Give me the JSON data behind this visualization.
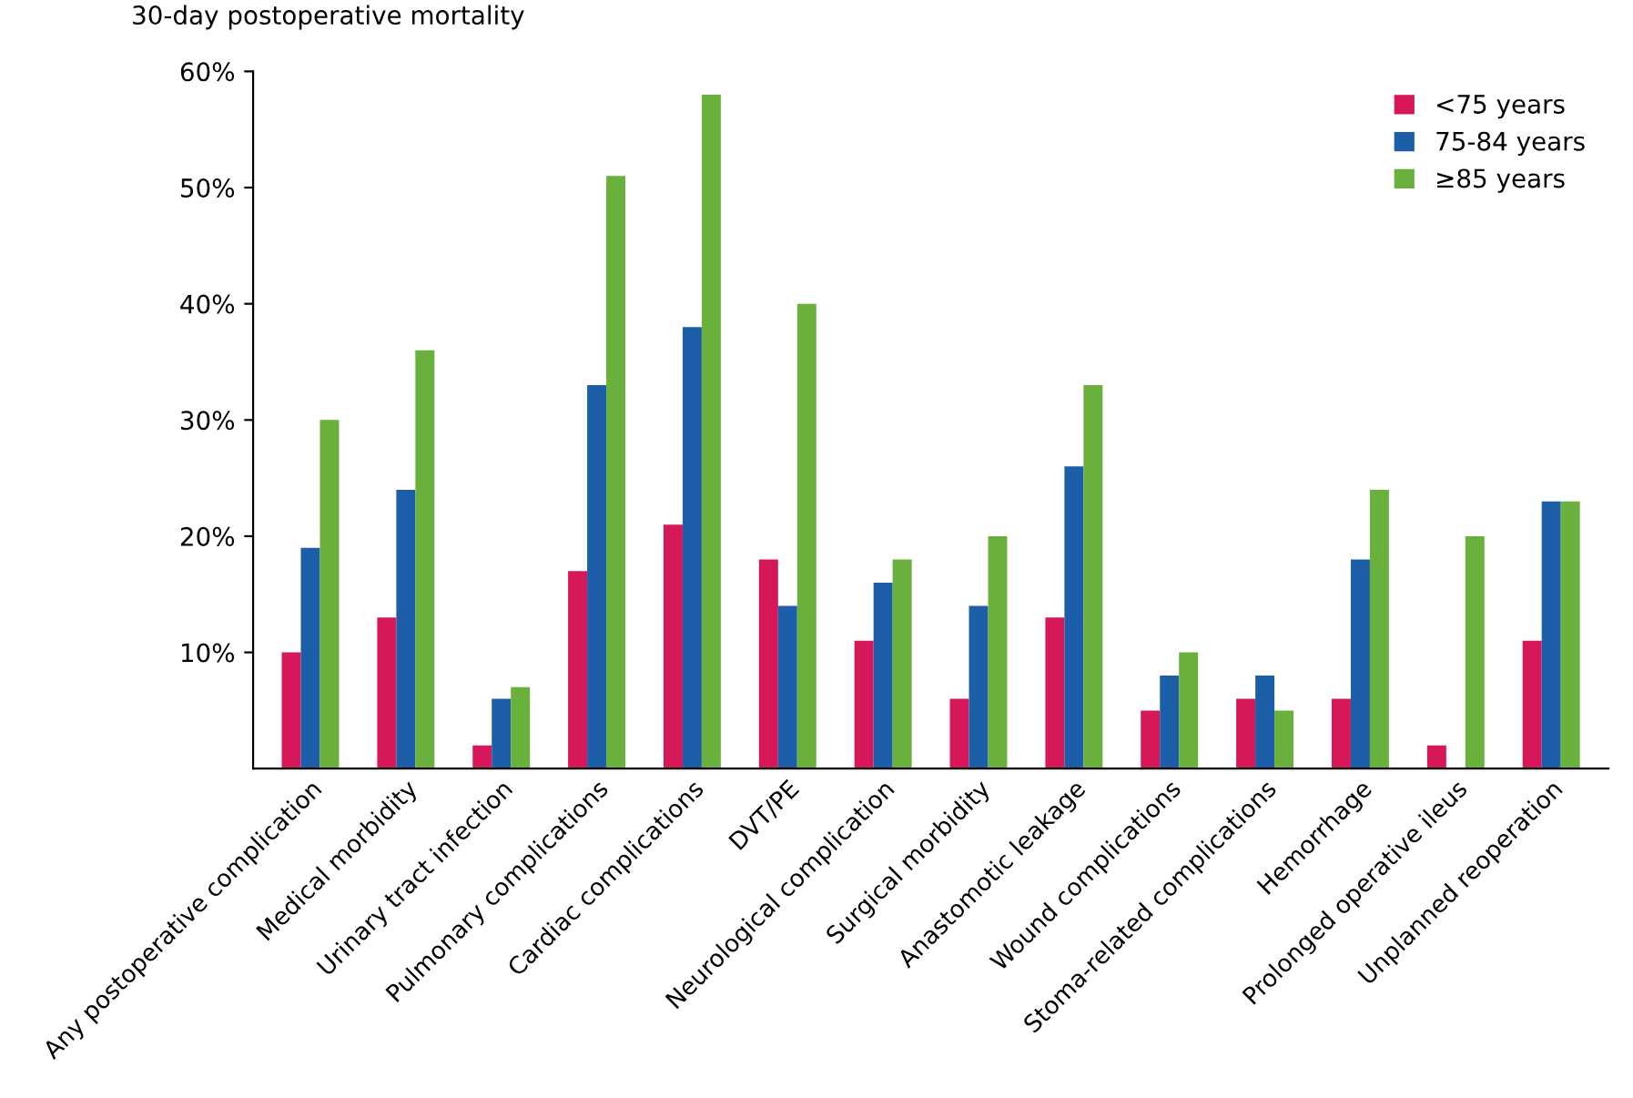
{
  "chart_data": {
    "type": "bar",
    "ylabel": "30-day postoperative mortality",
    "categories": [
      "Any postoperative complication",
      "Medical morbidity",
      "Urinary tract infection",
      "Pulmonary complications",
      "Cardiac complications",
      "DVT/PE",
      "Neurological complication",
      "Surgical morbidity",
      "Anastomotic leakage",
      "Wound complications",
      "Stoma-related complications",
      "Hemorrhage",
      "Prolonged operative ileus",
      "Unplanned reoperation"
    ],
    "series": [
      {
        "name": "<75 years",
        "color": "#d6175a",
        "values": [
          10,
          13,
          2,
          17,
          21,
          18,
          11,
          6,
          13,
          5,
          6,
          6,
          2,
          11
        ]
      },
      {
        "name": "75-84 years",
        "color": "#1c5fa8",
        "values": [
          19,
          24,
          6,
          33,
          38,
          14,
          16,
          14,
          26,
          8,
          8,
          18,
          null,
          23
        ]
      },
      {
        "name": "≥85 years",
        "color": "#6ab03c",
        "values": [
          30,
          36,
          7,
          51,
          58,
          40,
          18,
          20,
          33,
          10,
          5,
          24,
          20,
          23
        ]
      }
    ],
    "ylim": [
      0,
      60
    ],
    "yticks": [
      {
        "value": 10,
        "label": "10%"
      },
      {
        "value": 20,
        "label": "20%"
      },
      {
        "value": 30,
        "label": "30%"
      },
      {
        "value": 40,
        "label": "40%"
      },
      {
        "value": 50,
        "label": "50%"
      },
      {
        "value": 60,
        "label": "60%"
      }
    ],
    "grid": false,
    "legend": "top right"
  }
}
